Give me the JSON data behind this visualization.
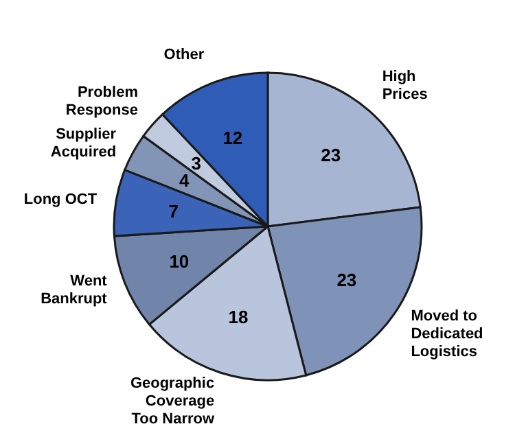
{
  "chart_data": {
    "type": "pie",
    "categories": [
      "High Prices",
      "Moved to Dedicated Logistics",
      "Geographic Coverage Too Narrow",
      "Went Bankrupt",
      "Long OCT",
      "Supplier Acquired",
      "Problem Response",
      "Other"
    ],
    "values": [
      23,
      23,
      18,
      10,
      7,
      4,
      3,
      12
    ],
    "colors": [
      "#a6b5d1",
      "#7f93b9",
      "#b9c5dc",
      "#7184aa",
      "#3b63b8",
      "#8395b7",
      "#c1cbe0",
      "#2f5cb6"
    ],
    "data_labels": true
  }
}
